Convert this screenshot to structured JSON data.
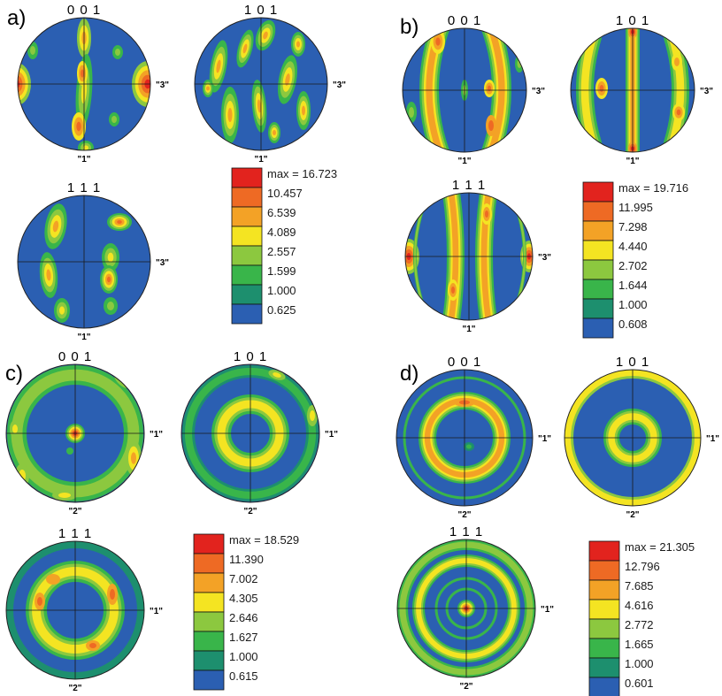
{
  "colors": {
    "background": "#2b5fb2",
    "levels": [
      "#2b5fb2",
      "#1d8f6e",
      "#39b54a",
      "#8cc83f",
      "#f4e422",
      "#f3a226",
      "#ee6a24",
      "#e2231e"
    ]
  },
  "panels": [
    {
      "label": "a)",
      "figures": [
        {
          "title": "0 0 1",
          "right_axis": "\"3\"",
          "bottom_axis": "\"1\"",
          "pattern": "a001"
        },
        {
          "title": "1 0 1",
          "right_axis": "\"3\"",
          "bottom_axis": "\"1\"",
          "pattern": "a101"
        },
        {
          "title": "1 1 1",
          "right_axis": "\"3\"",
          "bottom_axis": "\"1\"",
          "pattern": "a111"
        }
      ],
      "legend": [
        "max = 16.723",
        "10.457",
        "6.539",
        "4.089",
        "2.557",
        "1.599",
        "1.000",
        "0.625"
      ]
    },
    {
      "label": "b)",
      "figures": [
        {
          "title": "0 0 1",
          "right_axis": "\"3\"",
          "bottom_axis": "\"1\"",
          "pattern": "b001"
        },
        {
          "title": "1 0 1",
          "right_axis": "\"3\"",
          "bottom_axis": "\"1\"",
          "pattern": "b101"
        },
        {
          "title": "1 1 1",
          "right_axis": "\"3\"",
          "bottom_axis": "\"1\"",
          "pattern": "b111"
        }
      ],
      "legend": [
        "max = 19.716",
        "11.995",
        "7.298",
        "4.440",
        "2.702",
        "1.644",
        "1.000",
        "0.608"
      ]
    },
    {
      "label": "c)",
      "figures": [
        {
          "title": "0 0 1",
          "right_axis": "\"1\"",
          "bottom_axis": "\"2\"",
          "pattern": "c001"
        },
        {
          "title": "1 0 1",
          "right_axis": "\"1\"",
          "bottom_axis": "\"2\"",
          "pattern": "c101"
        },
        {
          "title": "1 1 1",
          "right_axis": "\"1\"",
          "bottom_axis": "\"2\"",
          "pattern": "c111"
        }
      ],
      "legend": [
        "max = 18.529",
        "11.390",
        "7.002",
        "4.305",
        "2.646",
        "1.627",
        "1.000",
        "0.615"
      ]
    },
    {
      "label": "d)",
      "figures": [
        {
          "title": "0 0 1",
          "right_axis": "\"1\"",
          "bottom_axis": "\"2\"",
          "pattern": "d001"
        },
        {
          "title": "1 0 1",
          "right_axis": "\"1\"",
          "bottom_axis": "\"2\"",
          "pattern": "d101"
        },
        {
          "title": "1 1 1",
          "right_axis": "\"1\"",
          "bottom_axis": "\"2\"",
          "pattern": "d111"
        }
      ],
      "legend": [
        "max = 21.305",
        "12.796",
        "7.685",
        "4.616",
        "2.772",
        "1.665",
        "1.000",
        "0.601"
      ]
    }
  ]
}
